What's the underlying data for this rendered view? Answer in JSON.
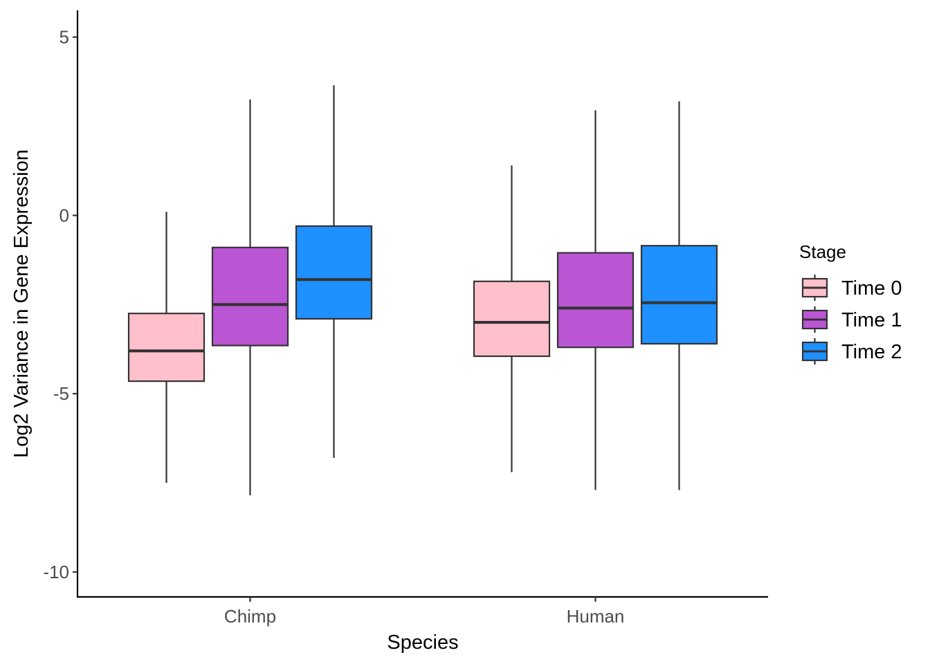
{
  "chart_data": {
    "type": "boxplot",
    "xlabel": "Species",
    "ylabel": "Log2 Variance in Gene Expression",
    "categories": [
      "Chimp",
      "Human"
    ],
    "ylim": [
      -10.7,
      5.75
    ],
    "yticks": [
      5,
      0,
      -5,
      -10
    ],
    "ytick_labels": [
      "5",
      "0",
      "-5",
      "-10"
    ],
    "grid": false,
    "legend": {
      "title": "Stage",
      "position": "right"
    },
    "series": [
      {
        "name": "Time 0",
        "color": "#FFC0CB",
        "boxes": [
          {
            "whisker_low": -7.5,
            "q1": -4.65,
            "median": -3.8,
            "q3": -2.75,
            "whisker_high": 0.1
          },
          {
            "whisker_low": -7.2,
            "q1": -3.95,
            "median": -3.0,
            "q3": -1.85,
            "whisker_high": 1.4
          }
        ]
      },
      {
        "name": "Time 1",
        "color": "#BA55D3",
        "boxes": [
          {
            "whisker_low": -7.85,
            "q1": -3.65,
            "median": -2.5,
            "q3": -0.9,
            "whisker_high": 3.25
          },
          {
            "whisker_low": -7.7,
            "q1": -3.7,
            "median": -2.6,
            "q3": -1.05,
            "whisker_high": 2.95
          }
        ]
      },
      {
        "name": "Time 2",
        "color": "#1E90FF",
        "boxes": [
          {
            "whisker_low": -6.8,
            "q1": -2.9,
            "median": -1.8,
            "q3": -0.3,
            "whisker_high": 3.65
          },
          {
            "whisker_low": -7.7,
            "q1": -3.6,
            "median": -2.45,
            "q3": -0.85,
            "whisker_high": 3.2
          }
        ]
      }
    ]
  }
}
